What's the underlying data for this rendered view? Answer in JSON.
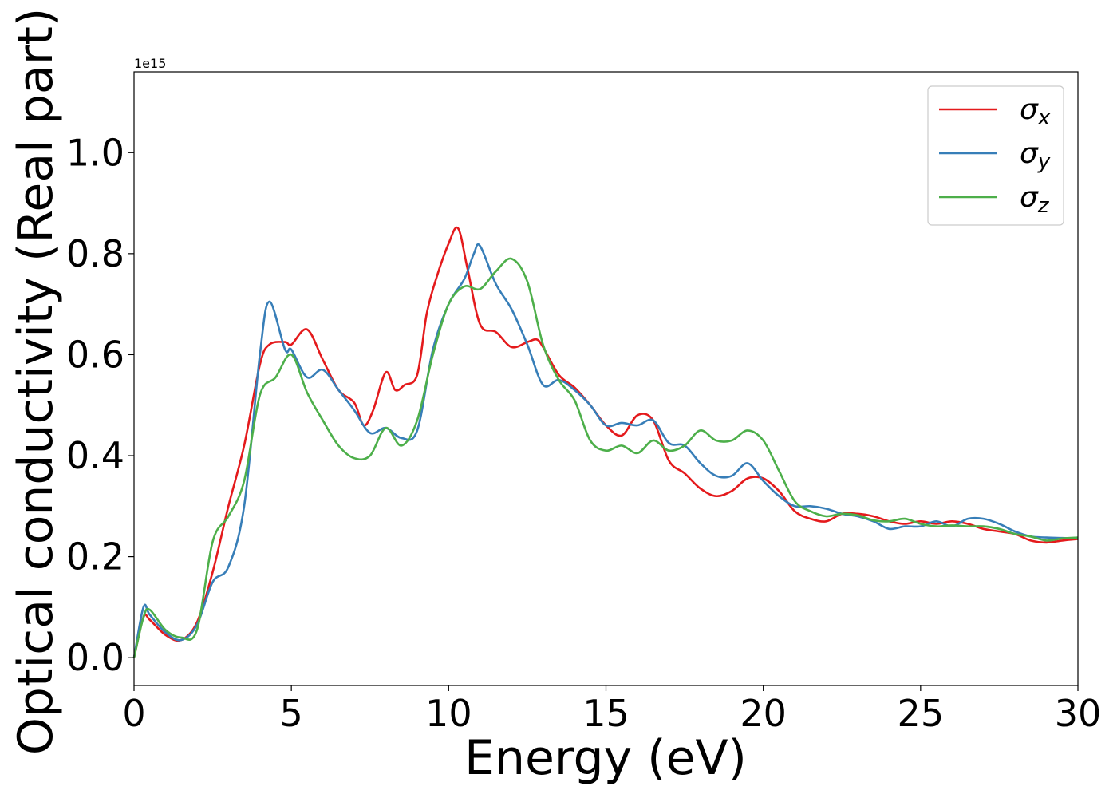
{
  "chart_data": {
    "type": "line",
    "xlabel": "Energy (eV)",
    "ylabel": "Optical conductivity (Real part)",
    "y_offset_label": "1e15",
    "xlim": [
      0,
      30
    ],
    "ylim": [
      -0.055,
      1.16
    ],
    "x_ticks": [
      0,
      5,
      10,
      15,
      20,
      25,
      30
    ],
    "y_ticks": [
      0.0,
      0.2,
      0.4,
      0.6,
      0.8,
      1.0
    ],
    "y_tick_labels": [
      "0.0",
      "0.2",
      "0.4",
      "0.6",
      "0.8",
      "1.0"
    ],
    "grid": false,
    "legend_position": "top-right",
    "series": [
      {
        "name": "σx",
        "symbol": "σ",
        "subscript": "x",
        "color": "#e41a1c",
        "x": [
          0,
          0.3,
          0.5,
          1.0,
          1.5,
          2.0,
          2.5,
          3.0,
          3.5,
          4.0,
          4.3,
          4.8,
          5.0,
          5.5,
          6.0,
          6.5,
          7.0,
          7.3,
          7.6,
          8.0,
          8.3,
          8.6,
          9.0,
          9.3,
          9.6,
          10.0,
          10.3,
          10.6,
          11.0,
          11.5,
          12.0,
          12.5,
          12.8,
          13.0,
          13.5,
          14.0,
          14.5,
          15.0,
          15.5,
          16.0,
          16.5,
          17.0,
          17.5,
          18.0,
          18.5,
          19.0,
          19.5,
          20.0,
          20.5,
          21.0,
          21.5,
          22.0,
          22.5,
          23.0,
          23.5,
          24.0,
          24.5,
          25.0,
          25.5,
          26.0,
          26.5,
          27.0,
          27.5,
          28.0,
          28.5,
          29.0,
          29.5,
          30.0
        ],
        "values": [
          0.0,
          0.08,
          0.075,
          0.045,
          0.035,
          0.07,
          0.17,
          0.3,
          0.42,
          0.58,
          0.62,
          0.625,
          0.62,
          0.65,
          0.59,
          0.53,
          0.505,
          0.46,
          0.49,
          0.565,
          0.53,
          0.54,
          0.56,
          0.68,
          0.75,
          0.82,
          0.85,
          0.77,
          0.66,
          0.645,
          0.615,
          0.625,
          0.63,
          0.615,
          0.56,
          0.535,
          0.5,
          0.46,
          0.44,
          0.48,
          0.47,
          0.39,
          0.365,
          0.335,
          0.32,
          0.33,
          0.355,
          0.355,
          0.33,
          0.29,
          0.275,
          0.27,
          0.285,
          0.285,
          0.28,
          0.27,
          0.265,
          0.27,
          0.265,
          0.27,
          0.265,
          0.255,
          0.25,
          0.245,
          0.232,
          0.228,
          0.232,
          0.235
        ]
      },
      {
        "name": "σy",
        "symbol": "σ",
        "subscript": "y",
        "color": "#377eb8",
        "x": [
          0,
          0.3,
          0.5,
          1.0,
          1.5,
          2.0,
          2.5,
          3.0,
          3.5,
          4.0,
          4.3,
          4.8,
          5.0,
          5.5,
          6.0,
          6.5,
          7.0,
          7.5,
          8.0,
          8.5,
          9.0,
          9.5,
          10.0,
          10.5,
          10.8,
          11.0,
          11.5,
          12.0,
          12.5,
          13.0,
          13.5,
          14.0,
          14.5,
          15.0,
          15.5,
          16.0,
          16.5,
          17.0,
          17.5,
          18.0,
          18.5,
          19.0,
          19.5,
          20.0,
          20.5,
          21.0,
          21.5,
          22.0,
          22.5,
          23.0,
          23.5,
          24.0,
          24.5,
          25.0,
          25.5,
          26.0,
          26.5,
          27.0,
          27.5,
          28.0,
          28.5,
          29.0,
          29.5,
          30.0
        ],
        "values": [
          0.0,
          0.1,
          0.085,
          0.05,
          0.035,
          0.065,
          0.15,
          0.18,
          0.3,
          0.6,
          0.705,
          0.61,
          0.61,
          0.555,
          0.57,
          0.53,
          0.49,
          0.445,
          0.455,
          0.435,
          0.45,
          0.61,
          0.7,
          0.75,
          0.8,
          0.815,
          0.74,
          0.69,
          0.62,
          0.54,
          0.55,
          0.53,
          0.5,
          0.46,
          0.465,
          0.46,
          0.47,
          0.425,
          0.42,
          0.385,
          0.36,
          0.36,
          0.385,
          0.35,
          0.32,
          0.3,
          0.3,
          0.295,
          0.285,
          0.28,
          0.27,
          0.255,
          0.26,
          0.26,
          0.27,
          0.26,
          0.275,
          0.275,
          0.265,
          0.25,
          0.24,
          0.238,
          0.237,
          0.236
        ]
      },
      {
        "name": "σz",
        "symbol": "σ",
        "subscript": "z",
        "color": "#4daf4a",
        "x": [
          0,
          0.3,
          0.5,
          1.0,
          1.5,
          2.0,
          2.5,
          3.0,
          3.5,
          4.0,
          4.5,
          5.0,
          5.5,
          6.0,
          6.5,
          7.0,
          7.5,
          8.0,
          8.5,
          9.0,
          9.5,
          10.0,
          10.5,
          11.0,
          11.5,
          12.0,
          12.5,
          13.0,
          13.5,
          14.0,
          14.5,
          15.0,
          15.5,
          16.0,
          16.5,
          17.0,
          17.5,
          18.0,
          18.5,
          19.0,
          19.5,
          20.0,
          20.5,
          21.0,
          21.5,
          22.0,
          22.5,
          23.0,
          23.5,
          24.0,
          24.5,
          25.0,
          25.5,
          26.0,
          26.5,
          27.0,
          27.5,
          28.0,
          28.5,
          29.0,
          29.5,
          30.0
        ],
        "values": [
          0.0,
          0.08,
          0.095,
          0.055,
          0.04,
          0.055,
          0.23,
          0.28,
          0.35,
          0.52,
          0.555,
          0.6,
          0.525,
          0.47,
          0.42,
          0.395,
          0.4,
          0.455,
          0.42,
          0.47,
          0.6,
          0.7,
          0.735,
          0.73,
          0.765,
          0.79,
          0.745,
          0.62,
          0.55,
          0.51,
          0.43,
          0.41,
          0.42,
          0.405,
          0.43,
          0.41,
          0.42,
          0.45,
          0.43,
          0.43,
          0.45,
          0.43,
          0.37,
          0.31,
          0.29,
          0.28,
          0.285,
          0.282,
          0.272,
          0.27,
          0.275,
          0.265,
          0.26,
          0.262,
          0.26,
          0.26,
          0.255,
          0.245,
          0.24,
          0.232,
          0.236,
          0.238
        ]
      }
    ]
  }
}
